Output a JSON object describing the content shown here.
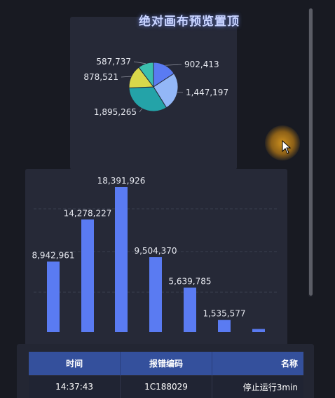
{
  "title": "绝对画布预览置顶",
  "chart_data": [
    {
      "type": "pie",
      "labels": [
        "902,413",
        "1,447,197",
        "1,895,265",
        "878,521",
        "587,737"
      ],
      "values": [
        902413,
        1447197,
        1895265,
        878521,
        587737
      ],
      "colors": [
        "#5a7bf2",
        "#93b7f7",
        "#24a3a8",
        "#d9d84a",
        "#3bc0ae"
      ]
    },
    {
      "type": "bar",
      "categories": [
        "",
        "",
        "",
        "",
        "",
        "",
        ""
      ],
      "values": [
        8942961,
        14278227,
        18391926,
        9504370,
        5639785,
        1535577,
        400000
      ],
      "labels": [
        "8,942,961",
        "14,278,227",
        "18,391,926",
        "9,504,370",
        "5,639,785",
        "1,535,577",
        ""
      ],
      "color": "#5a7bf2",
      "grid": true
    }
  ],
  "table": {
    "headers": [
      "时间",
      "报错编码",
      "名称"
    ],
    "rows": [
      [
        "14:37:43",
        "1C188029",
        "停止运行3min"
      ]
    ]
  },
  "colors": {
    "background": "#181a22",
    "panel": "#262937",
    "table_header": "#34509c",
    "accent": "#5a7bf2"
  }
}
